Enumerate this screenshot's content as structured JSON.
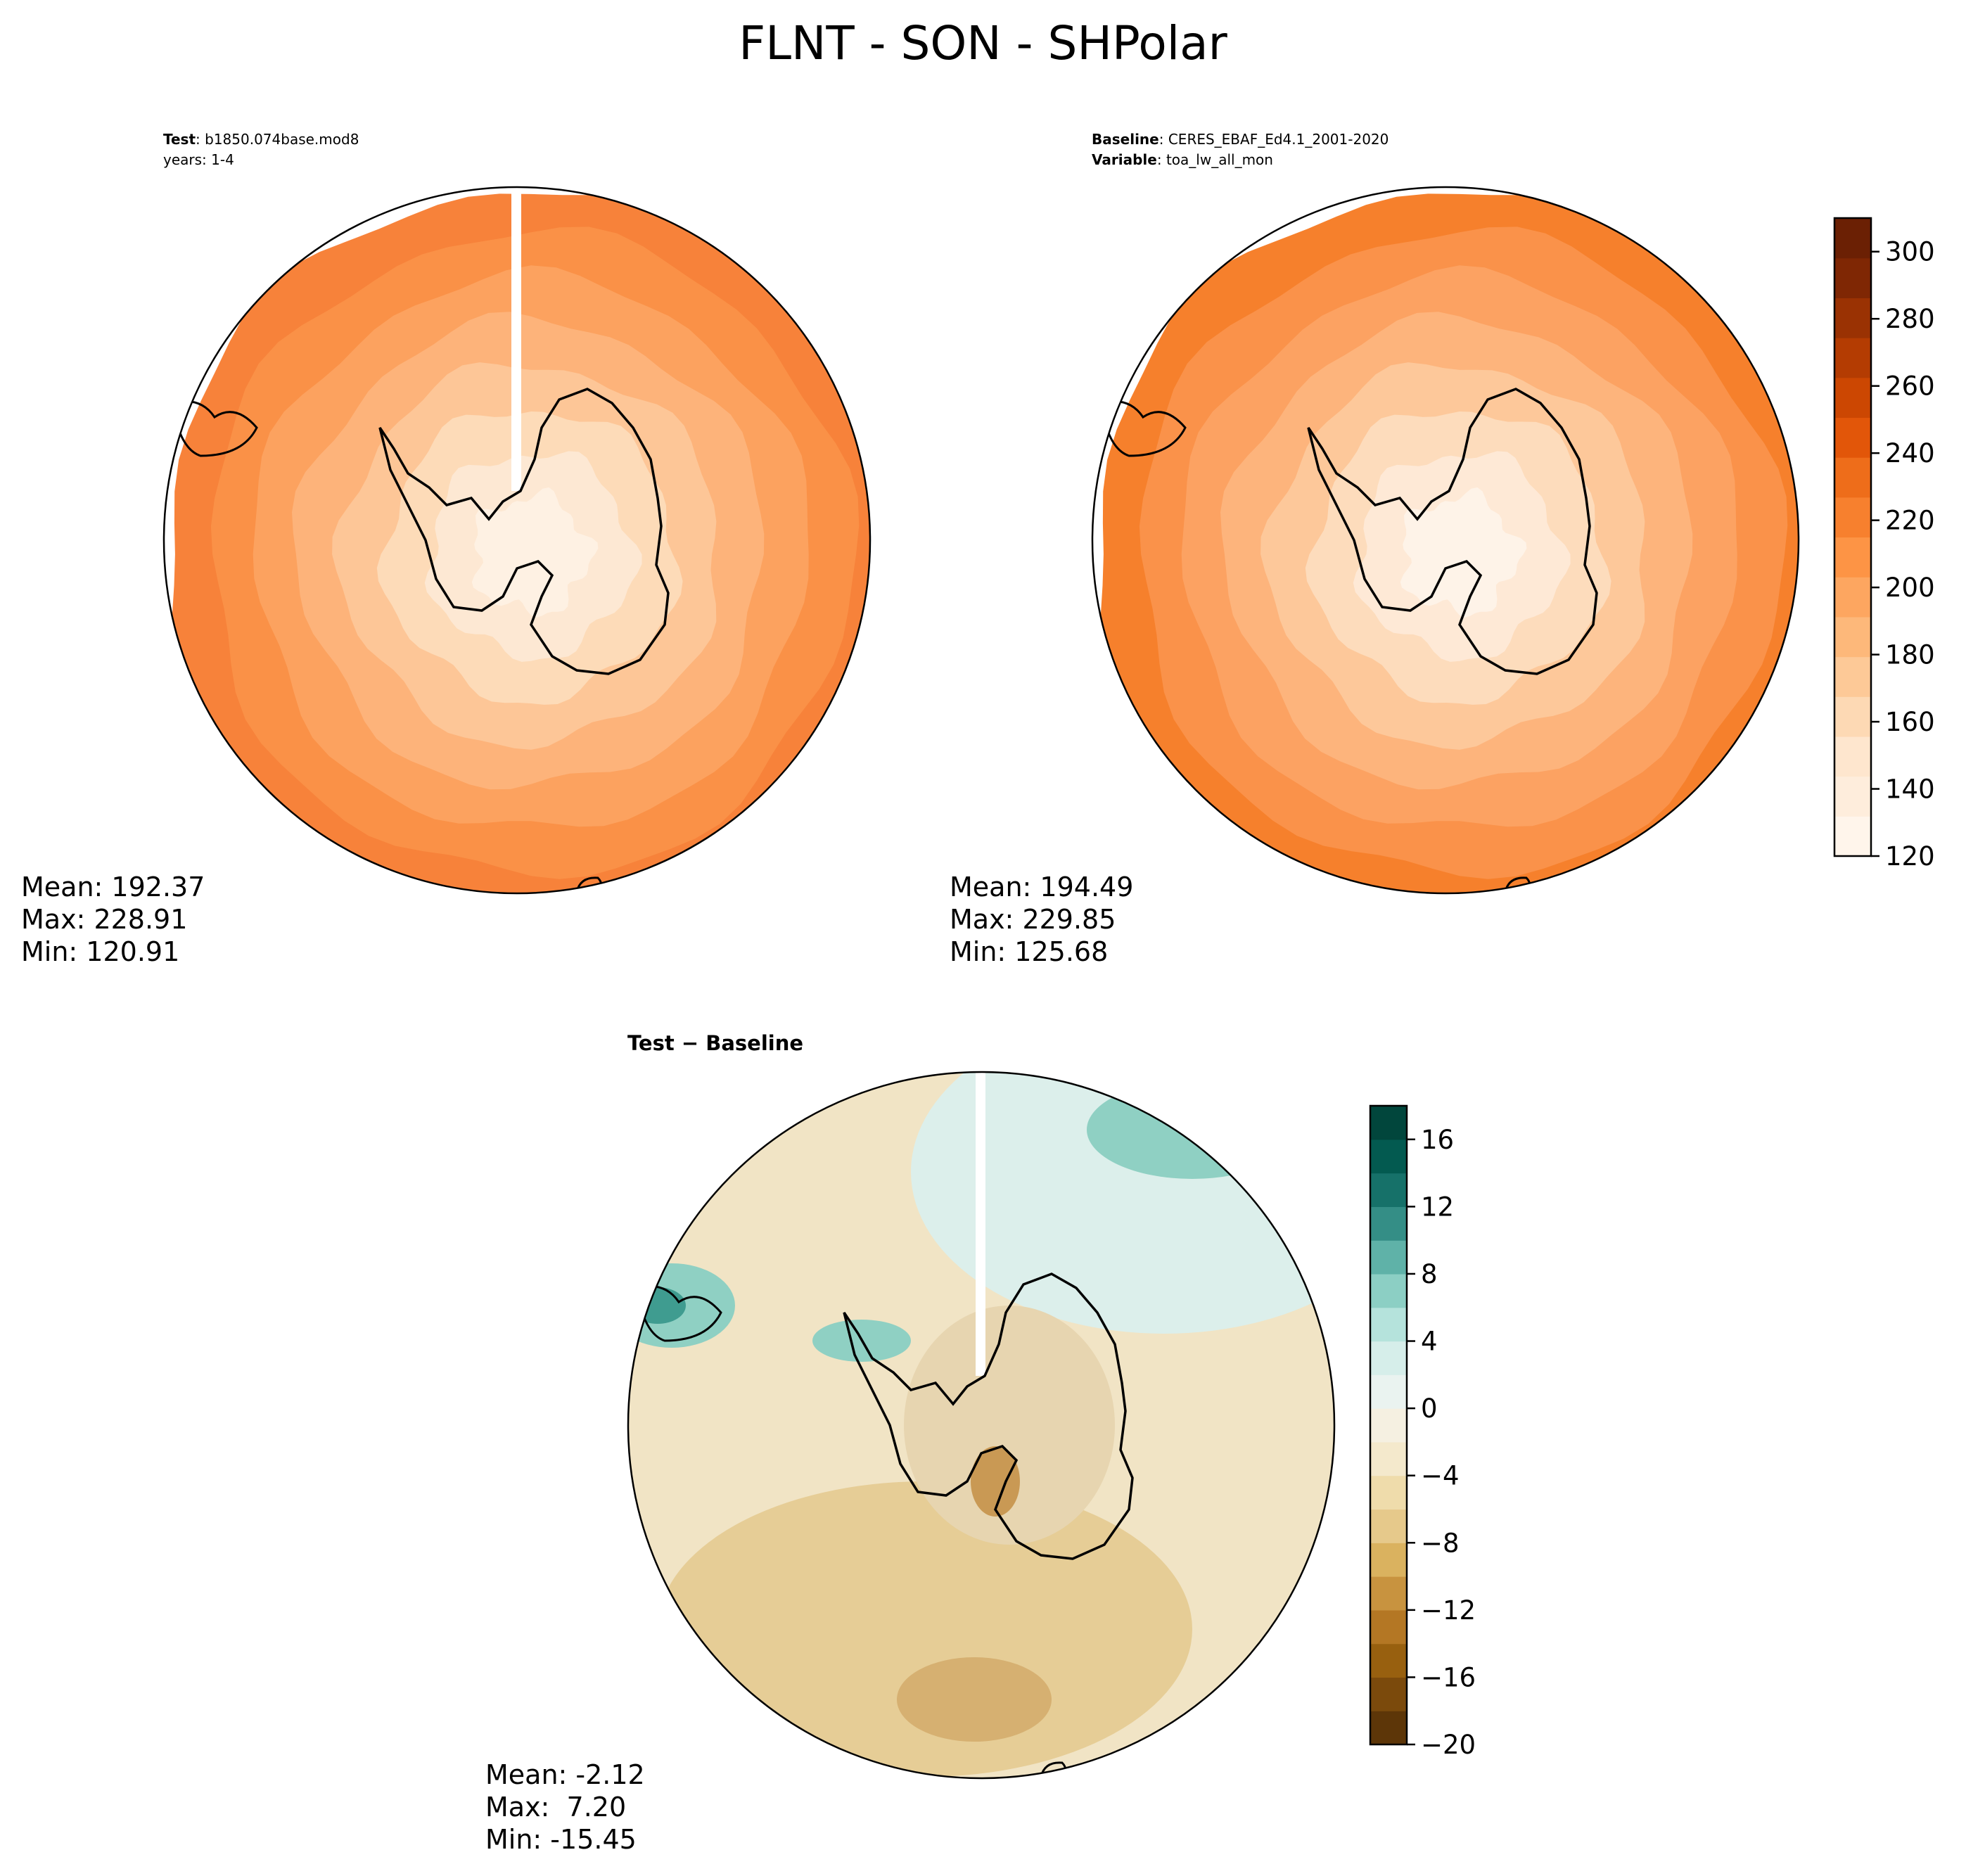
{
  "title": "FLNT - SON - SHPolar",
  "test_panel": {
    "label": "Test",
    "case": "b1850.074base.mod8",
    "years": "years: 1-4",
    "stats": {
      "mean": "Mean: 192.37",
      "max": "Max: 228.91",
      "min": "Min: 120.91"
    }
  },
  "baseline_panel": {
    "label": "Baseline",
    "case": "CERES_EBAF_Ed4.1_2001-2020",
    "variable_label": "Variable",
    "variable": "toa_lw_all_mon",
    "stats": {
      "mean": "Mean: 194.49",
      "max": "Max: 229.85",
      "min": "Min: 125.68"
    }
  },
  "diff_panel": {
    "title": "Test − Baseline",
    "stats": {
      "mean": "Mean: -2.12",
      "max": "Max:  7.20",
      "min": "Min: -15.45"
    }
  },
  "colorbars": {
    "main": {
      "ticks": [
        "120",
        "140",
        "160",
        "180",
        "200",
        "220",
        "240",
        "260",
        "280",
        "300"
      ],
      "range": [
        120,
        310
      ],
      "colors": [
        "#fff5eb",
        "#feeddc",
        "#fee6ce",
        "#fdd9b4",
        "#fdc997",
        "#fdb87a",
        "#fda660",
        "#fd9445",
        "#f7802e",
        "#ee6d1a",
        "#e25609",
        "#cc4702",
        "#b43c02",
        "#9a3203",
        "#7f2704",
        "#6b2004"
      ]
    },
    "diff": {
      "ticks": [
        "−20",
        "−16",
        "−12",
        "−8",
        "−4",
        "0",
        "4",
        "8",
        "12",
        "16"
      ],
      "range": [
        -20,
        18
      ],
      "colors": [
        "#5d3608",
        "#7b4a0c",
        "#98600f",
        "#b47724",
        "#c8933f",
        "#dab25f",
        "#e6c98b",
        "#efdcab",
        "#f4e9cc",
        "#f5f0e1",
        "#eaf3f0",
        "#d6eeea",
        "#b5e3dc",
        "#8ccfc4",
        "#5fb2a8",
        "#348e86",
        "#167169",
        "#035a50",
        "#01463c"
      ]
    }
  },
  "map_colors": {
    "test": [
      "#fef1e3",
      "#fde8d3",
      "#fddbb8",
      "#fdc697",
      "#fdb37a",
      "#fca25f",
      "#fa9147",
      "#f7823a"
    ],
    "baseline": [
      "#fef3e8",
      "#fee9d6",
      "#fddcbc",
      "#fdc89a",
      "#fdb47c",
      "#fca262",
      "#fa924a",
      "#f6802c"
    ],
    "diff": {
      "ocean": "#f1e4c5",
      "south": "#e6cd96",
      "north": "#dcefeb",
      "teal": "#8fd0c3",
      "dark": "#3f9c90",
      "brown": "#c99954",
      "antarctic": "#e7d5b0"
    }
  }
}
